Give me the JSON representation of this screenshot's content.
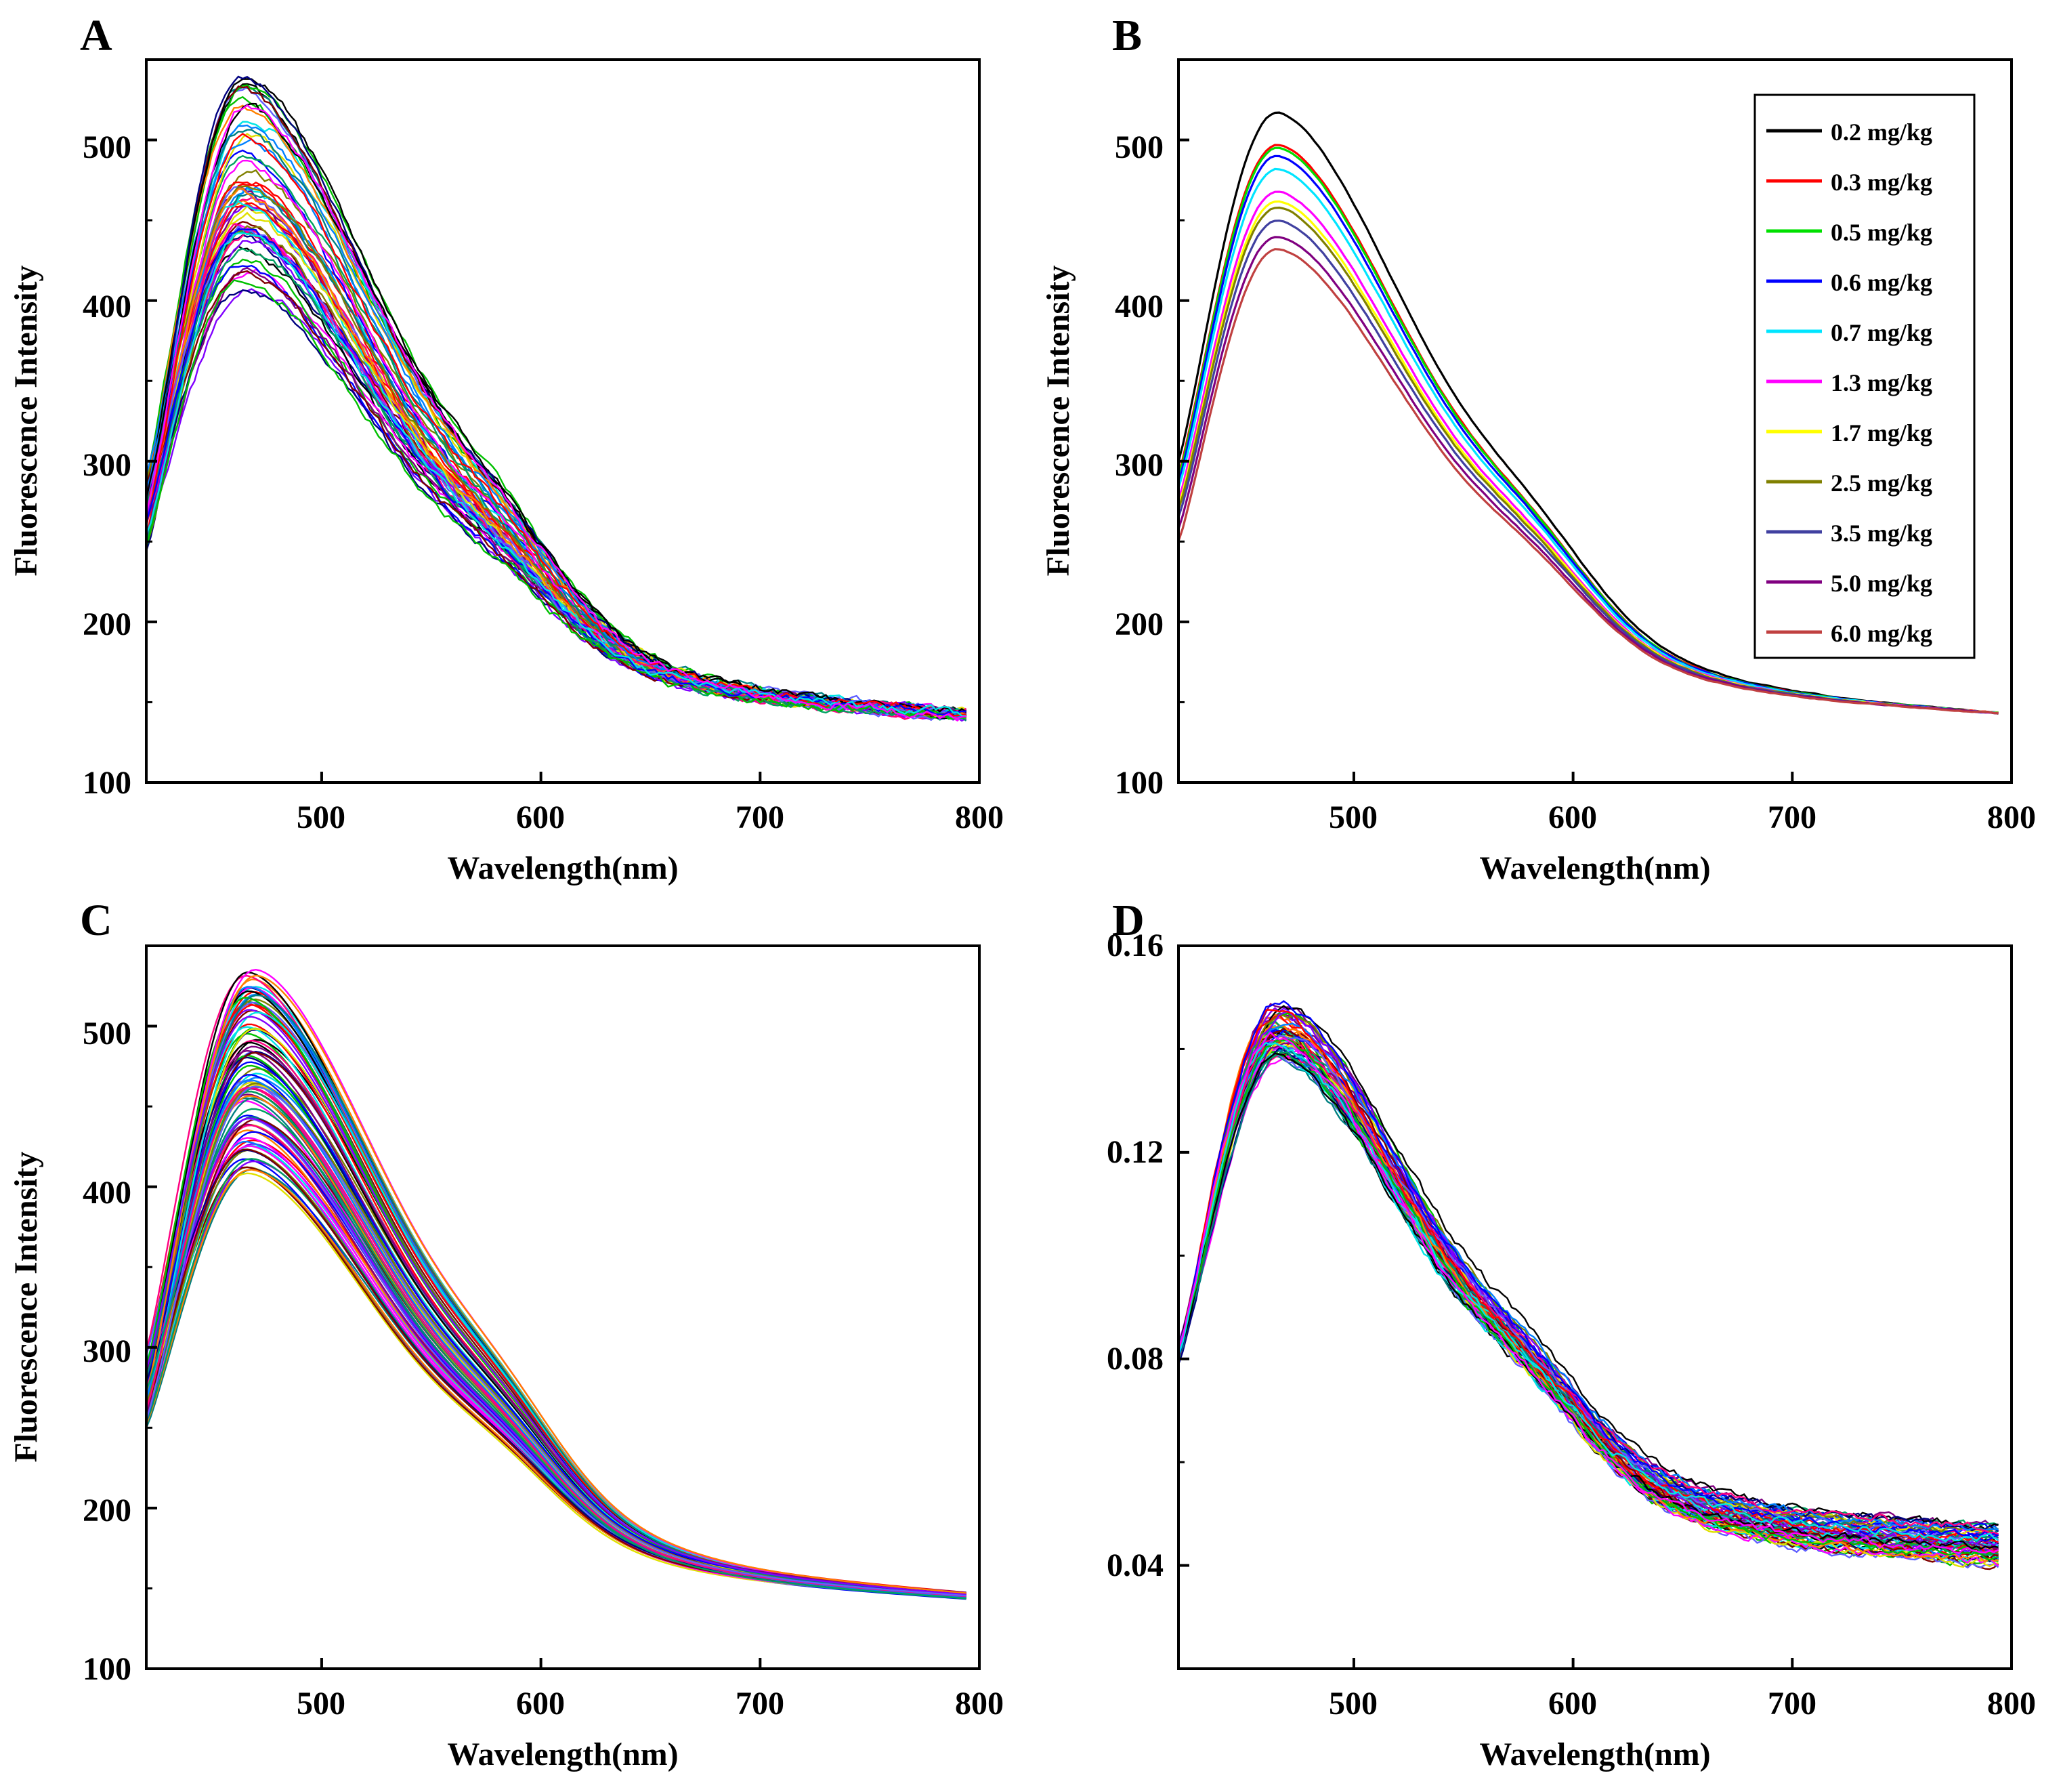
{
  "figure": {
    "panels": [
      {
        "letter": "A"
      },
      {
        "letter": "B"
      },
      {
        "letter": "C"
      },
      {
        "letter": "D"
      }
    ]
  },
  "chart_data": [
    {
      "panel": "A",
      "type": "line",
      "title": "",
      "xlabel": "Wavelength(nm)",
      "ylabel": "Fluorescence Intensity",
      "xlim": [
        420,
        800
      ],
      "ylim": [
        100,
        550
      ],
      "xticks": [
        500,
        600,
        700,
        800
      ],
      "yticks": [
        100,
        200,
        300,
        400,
        500
      ],
      "xtick_labels": [
        "500",
        "600",
        "700",
        "800"
      ],
      "ytick_labels": [
        "100",
        "200",
        "300",
        "400",
        "500"
      ],
      "grid": false,
      "series_count": 60,
      "peak_wavelength": 465,
      "peak_range": [
        405,
        540
      ],
      "start_range": [
        240,
        300
      ],
      "end_value": 142,
      "x_end": 795,
      "noise": "high",
      "colors": [
        "#000000",
        "#ff0000",
        "#00c000",
        "#0000ff",
        "#00e5e5",
        "#ff00ff",
        "#e0e000",
        "#808000",
        "#000080",
        "#800080",
        "#800000",
        "#008080",
        "#ff8000",
        "#8000ff",
        "#0080ff",
        "#ff0080",
        "#00a060",
        "#6060ff"
      ]
    },
    {
      "panel": "B",
      "type": "line",
      "title": "",
      "xlabel": "Wavelength(nm)",
      "ylabel": "Fluorescence Intensity",
      "xlim": [
        420,
        800
      ],
      "ylim": [
        100,
        550
      ],
      "xticks": [
        500,
        600,
        700,
        800
      ],
      "yticks": [
        100,
        200,
        300,
        400,
        500
      ],
      "xtick_labels": [
        "500",
        "600",
        "700",
        "800"
      ],
      "ytick_labels": [
        "100",
        "200",
        "300",
        "400",
        "500"
      ],
      "grid": false,
      "legend_position": "top-right",
      "peak_wavelength": 465,
      "end_value": 143,
      "x_end": 795,
      "noise": "low",
      "series": [
        {
          "name": "0.2 mg/kg",
          "color": "#000000",
          "peak": 517,
          "start": 300
        },
        {
          "name": "0.3 mg/kg",
          "color": "#ff0000",
          "peak": 497,
          "start": 292
        },
        {
          "name": "0.5 mg/kg",
          "color": "#00e000",
          "peak": 495,
          "start": 290
        },
        {
          "name": "0.6 mg/kg",
          "color": "#0000ff",
          "peak": 490,
          "start": 287
        },
        {
          "name": "0.7 mg/kg",
          "color": "#00e5ff",
          "peak": 482,
          "start": 283
        },
        {
          "name": "1.3 mg/kg",
          "color": "#ff00ff",
          "peak": 468,
          "start": 276
        },
        {
          "name": "1.7 mg/kg",
          "color": "#ffff00",
          "peak": 462,
          "start": 272
        },
        {
          "name": "2.5 mg/kg",
          "color": "#808000",
          "peak": 458,
          "start": 270
        },
        {
          "name": "3.5 mg/kg",
          "color": "#4040a0",
          "peak": 450,
          "start": 265
        },
        {
          "name": "5.0 mg/kg",
          "color": "#800080",
          "peak": 440,
          "start": 258
        },
        {
          "name": "6.0 mg/kg",
          "color": "#c04040",
          "peak": 432,
          "start": 250
        }
      ]
    },
    {
      "panel": "C",
      "type": "line",
      "title": "",
      "xlabel": "Wavelength(nm)",
      "ylabel": "Fluorescence Intensity",
      "xlim": [
        420,
        800
      ],
      "ylim": [
        100,
        550
      ],
      "xticks": [
        500,
        600,
        700,
        800
      ],
      "yticks": [
        100,
        200,
        300,
        400,
        500
      ],
      "xtick_labels": [
        "500",
        "600",
        "700",
        "800"
      ],
      "ytick_labels": [
        "100",
        "200",
        "300",
        "400",
        "500"
      ],
      "grid": false,
      "series_count": 90,
      "peak_wavelength": 468,
      "peak_range": [
        408,
        537
      ],
      "start_range": [
        245,
        300
      ],
      "end_value": 145,
      "x_end": 795,
      "noise": "none",
      "colors": [
        "#000000",
        "#ff0000",
        "#00c000",
        "#0000ff",
        "#00e5e5",
        "#ff00ff",
        "#e0e000",
        "#808000",
        "#000080",
        "#800080",
        "#800000",
        "#008080",
        "#ff8000",
        "#8000ff",
        "#0080ff",
        "#ff0080",
        "#00a060",
        "#6060ff"
      ]
    },
    {
      "panel": "D",
      "type": "line",
      "title": "",
      "xlabel": "Wavelength(nm)",
      "ylabel": "",
      "xlim": [
        420,
        800
      ],
      "ylim": [
        0.02,
        0.16
      ],
      "xticks": [
        500,
        600,
        700,
        800
      ],
      "yticks": [
        0.04,
        0.08,
        0.12,
        0.16
      ],
      "xtick_labels": [
        "500",
        "600",
        "700",
        "800"
      ],
      "ytick_labels": [
        "0.04",
        "0.08",
        "0.12",
        "0.16"
      ],
      "grid": false,
      "series_count": 60,
      "peak_wavelength": 466,
      "peak_range": [
        0.138,
        0.149
      ],
      "start_range": [
        0.079,
        0.083
      ],
      "end_range": [
        0.04,
        0.048
      ],
      "x_end": 795,
      "noise": "medium",
      "colors": [
        "#000000",
        "#ff0000",
        "#00c000",
        "#0000ff",
        "#00e5e5",
        "#ff00ff",
        "#e0e000",
        "#808000",
        "#000080",
        "#800080",
        "#800000",
        "#008080",
        "#ff8000",
        "#8000ff",
        "#0080ff",
        "#ff0080",
        "#00a060",
        "#6060ff"
      ]
    }
  ]
}
